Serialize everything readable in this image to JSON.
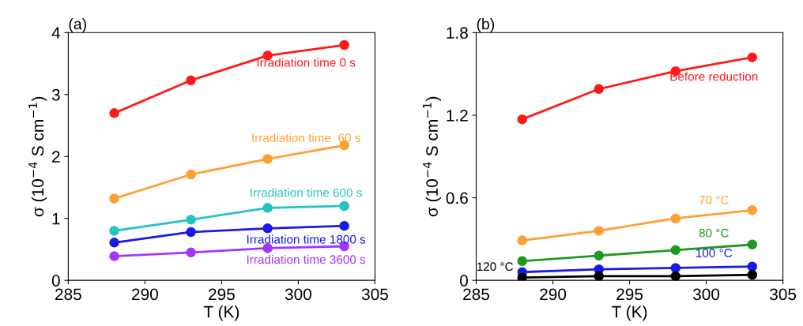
{
  "chart_data": [
    {
      "type": "line",
      "title": "(a)",
      "xlabel": "T (K)",
      "ylabel": "σ (10$^{−4}$ S cm$^{−1}$)",
      "x": [
        288,
        293,
        298,
        303
      ],
      "xlim": [
        285,
        305
      ],
      "xticks": [
        285,
        290,
        295,
        300,
        305
      ],
      "ylim": [
        0,
        4
      ],
      "yticks": [
        0,
        1,
        2,
        3,
        4
      ],
      "marker": "circle",
      "grid": false,
      "legend": false,
      "series": [
        {
          "name": "Irradiation time 0 s",
          "color": "#ff1a1a",
          "values": [
            2.7,
            3.23,
            3.63,
            3.8
          ]
        },
        {
          "name": "Irradiation time  60 s",
          "color": "#ff9f33",
          "values": [
            1.32,
            1.71,
            1.96,
            2.18
          ]
        },
        {
          "name": "Irradiation time 600 s",
          "color": "#22c4c0",
          "values": [
            0.8,
            0.98,
            1.17,
            1.2
          ]
        },
        {
          "name": "Irradiation time 1800 s",
          "color": "#1a1ae6",
          "values": [
            0.61,
            0.78,
            0.84,
            0.88
          ]
        },
        {
          "name": "Irradiation time 3600 s",
          "color": "#a533ff",
          "values": [
            0.39,
            0.45,
            0.52,
            0.55
          ]
        }
      ]
    },
    {
      "type": "line",
      "title": "(b)",
      "xlabel": "T (K)",
      "ylabel": "σ (10$^{−4}$ S cm$^{−1}$)",
      "x": [
        288,
        293,
        298,
        303
      ],
      "xlim": [
        285,
        305
      ],
      "xticks": [
        285,
        290,
        295,
        300,
        305
      ],
      "ylim": [
        0,
        1.8
      ],
      "yticks": [
        0,
        0.6,
        1.2,
        1.8
      ],
      "marker": "circle",
      "grid": false,
      "legend": false,
      "series": [
        {
          "name": "Before reduction",
          "color": "#ff1a1a",
          "values": [
            1.17,
            1.39,
            1.52,
            1.62
          ]
        },
        {
          "name": "70 °C",
          "color": "#ff9f33",
          "values": [
            0.29,
            0.36,
            0.45,
            0.51
          ]
        },
        {
          "name": "80 °C",
          "color": "#1f9a1f",
          "values": [
            0.14,
            0.18,
            0.22,
            0.26
          ]
        },
        {
          "name": "100 °C",
          "color": "#1a1ae6",
          "values": [
            0.06,
            0.08,
            0.09,
            0.1
          ]
        },
        {
          "name": "120 °C",
          "color": "#000000",
          "values": [
            0.02,
            0.03,
            0.03,
            0.04
          ]
        }
      ]
    }
  ]
}
